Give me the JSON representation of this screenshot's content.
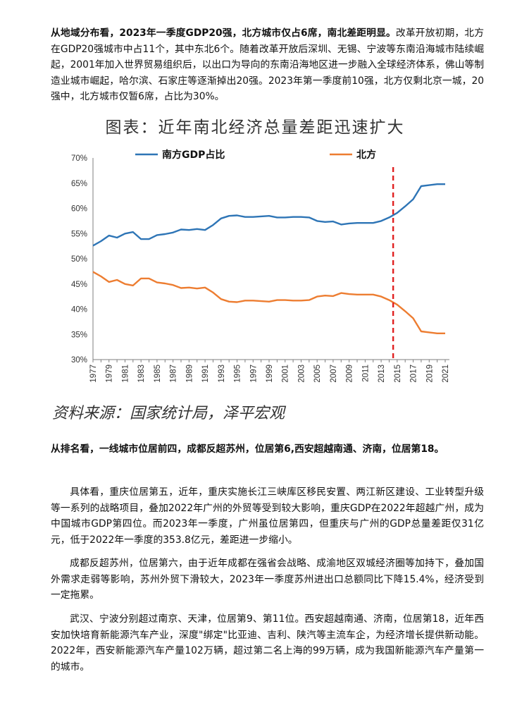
{
  "paragraphs": {
    "p1_bold": "从地域分布看，2023年一季度GDP20强，北方城市仅占6席，南北差距明显。",
    "p1_text": "改革开放初期，北方在GDP20强城市中占11个，其中东北6个。随着改革开放后深圳、无锡、宁波等东南沿海城市陆续崛起，2001年加入世界贸易组织后，以出口为导向的东南沿海地区进一步融入全球经济体系，佛山等制造业城市崛起，哈尔滨、石家庄等逐渐掉出20强。2023年第一季度前10强，北方仅剩北京一城，20强中，北方城市仅暂6席，占比为30%。",
    "p2_bold": "从排名看，一线城市位居前四，成都反超苏州，位居第6,西安超越南通、济南，位居第18。",
    "p3": "具体看，重庆位居第五，近年，重庆实施长江三峡库区移民安置、两江新区建设、工业转型升级等一系列的战略项目，叠加2022年广州的外贸等受到较大影响，重庆GDP在2022年超越广州，成为中国城市GDP第四位。而2023年一季度，广州虽位居第四，但重庆与广州的GDP总量差距仅31亿元，低于2022年一季度的353.8亿元，差距进一步缩小。",
    "p4": "成都反超苏州，位居第六，由于近年成都在强省会战略、成渝地区双城经济圈等加持下，叠加国外需求走弱等影响，苏州外贸下滑较大，2023年一季度苏州进出口总额同比下降15.4%，经济受到一定拖累。",
    "p5": "武汉、宁波分别超过南京、天津，位居第9、第11位。西安超越南通、济南，位居第18，近年西安加快培育新能源汽车产业，深度\"绑定\"比亚迪、吉利、陕汽等主流车企，为经济增长提供新动能。2022年，西安新能源汽车产量102万辆，超过第二名上海的99万辆，成为我国新能源汽车产量第一的城市。"
  },
  "chart_title": "图表：近年南北经济总量差距迅速扩大",
  "source": "资料来源：国家统计局，泽平宏观",
  "chart_data": {
    "type": "line",
    "title": "图表：近年南北经济总量差距迅速扩大",
    "xlabel": "",
    "ylabel": "",
    "ylim": [
      30,
      70
    ],
    "yticks": [
      "30%",
      "35%",
      "40%",
      "45%",
      "50%",
      "55%",
      "60%",
      "65%",
      "70%"
    ],
    "x": [
      1977,
      1978,
      1979,
      1980,
      1981,
      1982,
      1983,
      1984,
      1985,
      1986,
      1987,
      1988,
      1989,
      1990,
      1991,
      1992,
      1993,
      1994,
      1995,
      1996,
      1997,
      1998,
      1999,
      2000,
      2001,
      2002,
      2003,
      2004,
      2005,
      2006,
      2007,
      2008,
      2009,
      2010,
      2011,
      2012,
      2013,
      2014,
      2015,
      2016,
      2017,
      2018,
      2019,
      2020,
      2021
    ],
    "xtick_labels": [
      "1977",
      "1979",
      "1981",
      "1983",
      "1985",
      "1987",
      "1989",
      "1991",
      "1993",
      "1995",
      "1997",
      "1999",
      "2001",
      "2003",
      "2005",
      "2007",
      "2009",
      "2011",
      "2013",
      "2015",
      "2017",
      "2019",
      "2021"
    ],
    "series": [
      {
        "name": "南方GDP占比",
        "color": "#2E75B6",
        "values": [
          52.6,
          53.5,
          54.6,
          54.2,
          55.0,
          55.3,
          53.9,
          53.9,
          54.7,
          54.9,
          55.2,
          55.8,
          55.7,
          55.9,
          55.7,
          56.7,
          58.0,
          58.5,
          58.6,
          58.3,
          58.3,
          58.4,
          58.5,
          58.2,
          58.2,
          58.3,
          58.3,
          58.2,
          57.5,
          57.3,
          57.4,
          56.8,
          57.0,
          57.1,
          57.1,
          57.1,
          57.5,
          58.2,
          59.1,
          60.4,
          61.8,
          64.4,
          64.6,
          64.8,
          64.8
        ]
      },
      {
        "name": "北方",
        "color": "#ED7D31",
        "values": [
          47.4,
          46.5,
          45.4,
          45.8,
          45.0,
          44.7,
          46.1,
          46.1,
          45.3,
          45.1,
          44.8,
          44.2,
          44.3,
          44.1,
          44.3,
          43.3,
          42.0,
          41.5,
          41.4,
          41.7,
          41.7,
          41.6,
          41.5,
          41.8,
          41.8,
          41.7,
          41.7,
          41.8,
          42.5,
          42.7,
          42.6,
          43.2,
          43.0,
          42.9,
          42.9,
          42.9,
          42.5,
          41.8,
          40.9,
          39.6,
          38.2,
          35.6,
          35.4,
          35.2,
          35.2
        ]
      }
    ],
    "reference_line": {
      "x": 2014.5,
      "style": "dashed",
      "color": "#E02020"
    },
    "legend": "top"
  }
}
